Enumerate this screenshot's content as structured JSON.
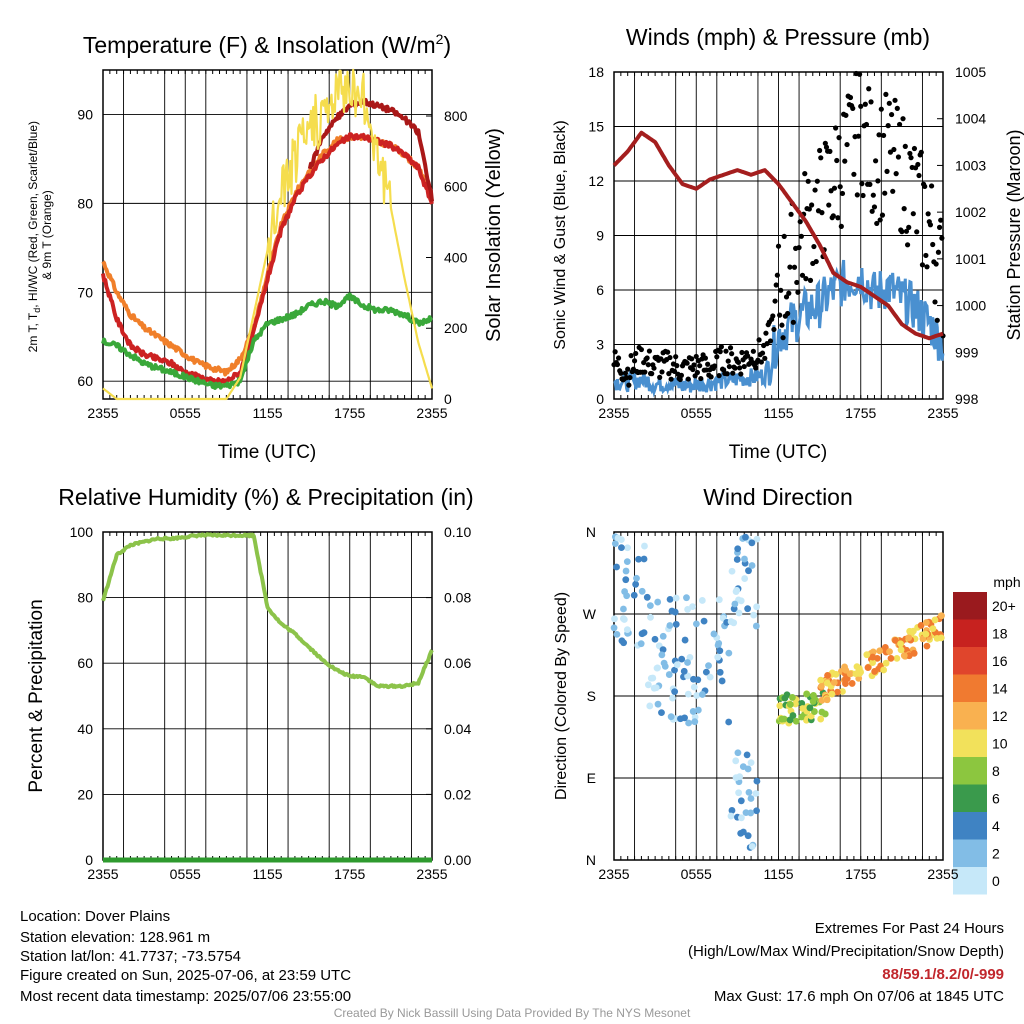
{
  "colors": {
    "temp_red": "#cc2222",
    "dewpoint_green": "#3aa83a",
    "hiwc_scarlet": "#aa1818",
    "hiwc_blue": "#1f4fb8",
    "temp9m_orange": "#f07f2a",
    "insolation_yellow": "#f5dd4e",
    "wind_blue": "#4a90d0",
    "gust_black": "#000000",
    "pressure_maroon": "#a41e1e",
    "rh_green": "#8cc34a",
    "precip_green": "#2e9a2e",
    "extremes_red": "#c1272d"
  },
  "chart_data": [
    {
      "id": "temperature",
      "type": "line",
      "title": "Temperature (F) & Insolation (W/m²)",
      "xlabel": "Time (UTC)",
      "ylabel": "2m T, T<sub>d</sub>, HI/WC (Red, Green, Scarlet/Blue) & 9m T (Orange)",
      "ylabel_right": "Solar Insolation (Yellow)",
      "x_ticks": [
        "2355",
        "0555",
        "1155",
        "1755",
        "2355"
      ],
      "y_ticks": [
        "60",
        "70",
        "80",
        "90"
      ],
      "y_right_ticks": [
        "0",
        "200",
        "400",
        "600",
        "800"
      ],
      "ylim": [
        58,
        95
      ],
      "ylim_right": [
        0,
        930
      ],
      "grid": true,
      "x_hours": [
        0,
        1,
        2,
        3,
        4,
        5,
        6,
        7,
        8,
        9,
        10,
        11,
        12,
        13,
        14,
        15,
        16,
        17,
        18,
        19,
        20,
        21,
        22,
        23,
        24
      ],
      "series": [
        {
          "key": "temp_9m",
          "axis": "left",
          "color_key": "temp9m_orange",
          "values": [
            73.5,
            70,
            67.5,
            66,
            65,
            64,
            63,
            62,
            61.5,
            61,
            62.5,
            66,
            72,
            77.5,
            81,
            83.5,
            85.5,
            87,
            87.5,
            87.5,
            87,
            86.5,
            85.5,
            84,
            80.5
          ]
        },
        {
          "key": "temp_2m",
          "axis": "left",
          "color_key": "temp_red",
          "values": [
            72,
            67,
            64,
            63,
            62.5,
            62,
            61,
            60.5,
            60,
            60,
            61,
            65.5,
            71.5,
            77,
            80.5,
            83,
            85,
            86.5,
            87.5,
            87.5,
            87,
            86.5,
            85.5,
            84,
            80
          ]
        },
        {
          "key": "heat_index",
          "axis": "left",
          "color_key": "hiwc_scarlet",
          "values": [
            null,
            null,
            null,
            null,
            null,
            null,
            null,
            null,
            null,
            null,
            null,
            null,
            null,
            null,
            null,
            83.5,
            87.5,
            89.5,
            91,
            91.5,
            91,
            90.5,
            89.5,
            88,
            80.5
          ]
        },
        {
          "key": "dewpoint",
          "axis": "left",
          "color_key": "dewpoint_green",
          "values": [
            64.5,
            64,
            63,
            62,
            61.5,
            61,
            60.5,
            60,
            59.5,
            59.5,
            60,
            64.5,
            66.5,
            67,
            67.5,
            68.5,
            69,
            68.5,
            69.5,
            68.5,
            68,
            68,
            67.5,
            66.5,
            67
          ]
        },
        {
          "key": "insolation",
          "axis": "right",
          "color_key": "insolation_yellow",
          "values": [
            30,
            0,
            0,
            0,
            0,
            0,
            0,
            0,
            0,
            0,
            60,
            240,
            420,
            590,
            680,
            760,
            800,
            860,
            900,
            850,
            720,
            540,
            340,
            160,
            30
          ]
        }
      ]
    },
    {
      "id": "wind",
      "type": "scatter",
      "title": "Winds (mph) & Pressure (mb)",
      "xlabel": "Time (UTC)",
      "ylabel": "Sonic Wind & Gust (Blue, Black)",
      "ylabel_right": "Station Pressure (Maroon)",
      "x_ticks": [
        "2355",
        "0555",
        "1155",
        "1755",
        "2355"
      ],
      "y_ticks": [
        "0",
        "3",
        "6",
        "9",
        "12",
        "15",
        "18"
      ],
      "y_right_ticks": [
        "998",
        "999",
        "1000",
        "1001",
        "1002",
        "1003",
        "1004",
        "1005"
      ],
      "ylim": [
        0,
        18
      ],
      "ylim_right": [
        998,
        1005
      ],
      "grid": true,
      "x_hours": [
        0,
        1,
        2,
        3,
        4,
        5,
        6,
        7,
        8,
        9,
        10,
        11,
        12,
        13,
        14,
        15,
        16,
        17,
        18,
        19,
        20,
        21,
        22,
        23,
        24
      ],
      "series": [
        {
          "key": "wind_speed",
          "axis": "left",
          "color_key": "wind_blue",
          "values": [
            1.0,
            0.9,
            1.1,
            0.8,
            0.9,
            0.7,
            0.8,
            0.9,
            1.0,
            1.1,
            1.2,
            1.3,
            3.5,
            4.2,
            4.8,
            5.2,
            6.0,
            6.5,
            6.8,
            5.8,
            6.2,
            5.5,
            5.0,
            4.2,
            3.0
          ]
        },
        {
          "key": "wind_gust",
          "axis": "left",
          "color_key": "gust_black",
          "values": [
            2.0,
            1.5,
            2.2,
            1.8,
            1.9,
            1.6,
            1.8,
            1.7,
            2.2,
            2.0,
            2.4,
            2.6,
            5.5,
            7.5,
            9.5,
            10.5,
            12.0,
            13.5,
            15.0,
            13.0,
            13.5,
            12.5,
            11.0,
            9.5,
            6.5
          ]
        },
        {
          "key": "pressure",
          "axis": "right",
          "color_key": "pressure_maroon",
          "values": [
            1003.0,
            1003.3,
            1003.7,
            1003.5,
            1003.0,
            1002.6,
            1002.5,
            1002.7,
            1002.8,
            1002.9,
            1002.8,
            1002.9,
            1002.6,
            1002.2,
            1001.8,
            1001.3,
            1000.7,
            1000.5,
            1000.4,
            1000.2,
            1000.0,
            999.6,
            999.4,
            999.3,
            999.4
          ]
        }
      ]
    },
    {
      "id": "humidity",
      "type": "line",
      "title": "Relative Humidity (%) & Precipitation (in)",
      "xlabel": "",
      "ylabel": "Percent & Precipitation",
      "ylabel_right": "",
      "x_ticks": [
        "2355",
        "0555",
        "1155",
        "1755",
        "2355"
      ],
      "y_ticks": [
        "0",
        "20",
        "40",
        "60",
        "80",
        "100"
      ],
      "y_right_ticks": [
        "0.00",
        "0.02",
        "0.04",
        "0.06",
        "0.08",
        "0.10"
      ],
      "ylim": [
        0,
        100
      ],
      "ylim_right": [
        0,
        0.1
      ],
      "grid": true,
      "x_hours": [
        0,
        1,
        2,
        3,
        4,
        5,
        6,
        7,
        8,
        9,
        10,
        11,
        12,
        13,
        14,
        15,
        16,
        17,
        18,
        19,
        20,
        21,
        22,
        23,
        24
      ],
      "series": [
        {
          "key": "rh",
          "axis": "left",
          "color_key": "rh_green",
          "values": [
            79,
            93,
            96,
            97,
            98,
            98,
            98.5,
            99,
            99,
            99,
            99,
            99,
            77,
            72,
            69,
            65,
            61,
            58,
            56,
            56,
            53,
            53,
            53,
            54,
            64
          ]
        },
        {
          "key": "precip",
          "axis": "right",
          "color_key": "precip_green",
          "values": [
            0,
            0,
            0,
            0,
            0,
            0,
            0,
            0,
            0,
            0,
            0,
            0,
            0,
            0,
            0,
            0,
            0,
            0,
            0,
            0,
            0,
            0,
            0,
            0,
            0
          ]
        }
      ]
    },
    {
      "id": "wind_direction",
      "type": "scatter",
      "title": "Wind Direction",
      "xlabel": "",
      "ylabel": "Direction (Colored By Speed)",
      "x_ticks": [
        "2355",
        "0555",
        "1155",
        "1755",
        "2355"
      ],
      "y_ticks": [
        "N",
        "E",
        "S",
        "W",
        "N"
      ],
      "y_degrees": [
        0,
        90,
        180,
        270,
        360
      ],
      "grid": true,
      "legend_title": "mph",
      "legend_labels": [
        "0",
        "2",
        "4",
        "6",
        "8",
        "10",
        "12",
        "14",
        "16",
        "18",
        "20+"
      ],
      "legend_colors": [
        "#c6e8f9",
        "#82bde6",
        "#3f83c3",
        "#3a9a4c",
        "#8cc63f",
        "#f2e15b",
        "#f9b150",
        "#f07a30",
        "#e0452c",
        "#c7221f",
        "#9a1a1e"
      ],
      "clusters": [
        {
          "start_hour": 0,
          "end_hour": 2.5,
          "dir_min": 225,
          "dir_max": 355,
          "speed": 1
        },
        {
          "start_hour": 2.5,
          "end_hour": 8.5,
          "dir_min": 150,
          "dir_max": 290,
          "speed": 1
        },
        {
          "start_hour": 8.5,
          "end_hour": 10.5,
          "dir_min": 10,
          "dir_max": 120,
          "speed": 1
        },
        {
          "start_hour": 8.5,
          "end_hour": 10.5,
          "dir_min": 250,
          "dir_max": 355,
          "speed": 1
        },
        {
          "start_hour": 12,
          "end_hour": 15.5,
          "dir_min": 150,
          "dir_max": 185,
          "speed": 4
        },
        {
          "start_hour": 15,
          "end_hour": 24,
          "dir_min": 185,
          "dir_max": 275,
          "speed": 6
        }
      ]
    }
  ],
  "info": {
    "location": "Location: Dover Plains",
    "elevation": "Station elevation: 128.961 m",
    "latlon": "Station lat/lon: 41.7737; -73.5754",
    "created": "Figure created on Sun, 2025-07-06, at 23:59 UTC",
    "recent": "Most recent data timestamp: 2025/07/06 23:55:00"
  },
  "extremes": {
    "title": "Extremes For Past 24 Hours",
    "subtitle": "(High/Low/Max Wind/Precipitation/Snow Depth)",
    "values": "88/59.1/8.2/0/-999",
    "max_gust": "Max Gust: 17.6 mph On 07/06 at 1845 UTC"
  },
  "credit": "Created By Nick Bassill Using Data Provided By The NYS Mesonet"
}
